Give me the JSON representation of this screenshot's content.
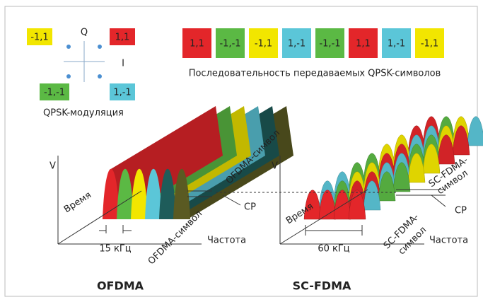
{
  "constellation": {
    "points": [
      {
        "label": "-1,1",
        "color": "#f2e600"
      },
      {
        "label": "1,1",
        "color": "#e3262a"
      },
      {
        "label": "-1,-1",
        "color": "#5bb944"
      },
      {
        "label": "1,-1",
        "color": "#5bc6d8"
      }
    ],
    "axis_q": "Q",
    "axis_i": "I",
    "caption": "QPSK-модуляция"
  },
  "sequence": {
    "symbols": [
      {
        "label": "1,1",
        "color": "#e3262a"
      },
      {
        "label": "-1,-1",
        "color": "#5bb944"
      },
      {
        "label": "-1,1",
        "color": "#f2e600"
      },
      {
        "label": "1,-1",
        "color": "#5bc6d8"
      },
      {
        "label": "-1,-1",
        "color": "#5bb944"
      },
      {
        "label": "1,1",
        "color": "#e3262a"
      },
      {
        "label": "1,-1",
        "color": "#5bc6d8"
      },
      {
        "label": "-1,1",
        "color": "#f2e600"
      }
    ],
    "caption": "Последовательность передаваемых QPSK-символов"
  },
  "ofdma": {
    "v": "V",
    "time": "Время",
    "symbol_top": "OFDMA-символ",
    "cp": "CP",
    "symbol_bottom": "OFDMA-символ",
    "frequency": "Частота",
    "spacing": "15 кГц",
    "title": "OFDMA"
  },
  "scfdma": {
    "v": "V",
    "time": "Время",
    "symbol_top": [
      "SC-FDMA-",
      "символ"
    ],
    "cp": "CP",
    "symbol_bottom": [
      "SC-FDMA-",
      "символ"
    ],
    "frequency": "Частота",
    "spacing": "60 кГц",
    "title": "SC-FDMA"
  }
}
